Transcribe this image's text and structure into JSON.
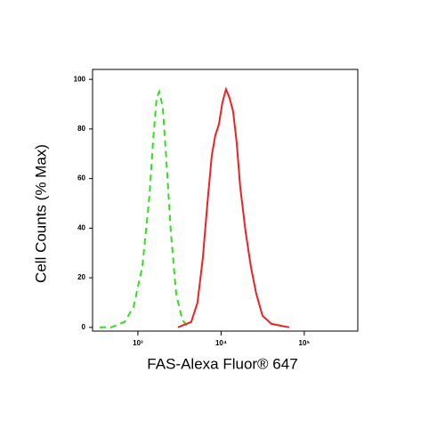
{
  "chart_data": {
    "type": "line",
    "x_label": "FAS-Alexa Fluor® 647",
    "y_label": "Cell Counts (% Max)",
    "xscale": "log",
    "xlim": [
      285,
      440000
    ],
    "ylim": [
      -1.5,
      104
    ],
    "xticks": [
      {
        "value": 1000,
        "label": "10³"
      },
      {
        "value": 10000,
        "label": "10⁴"
      },
      {
        "value": 100000,
        "label": "10⁵"
      }
    ],
    "yticks": [
      0,
      20,
      40,
      60,
      80,
      100
    ],
    "series": [
      {
        "color": "#33dd22",
        "dash": true,
        "x": [
          347,
          478,
          692,
          885,
          1130,
          1377,
          1520,
          1678,
          1806,
          1993,
          2199,
          2488,
          2884,
          3425,
          4070
        ],
        "values": [
          0,
          0,
          2.2,
          8.2,
          24.4,
          53,
          74.6,
          92.5,
          95,
          88.9,
          67.4,
          38.7,
          13.6,
          2.9,
          0
        ]
      },
      {
        "color": "#ee2222",
        "dash": false,
        "x": [
          3027,
          4385,
          5207,
          6034,
          6826,
          7726,
          8518,
          9400,
          10370,
          11450,
          12640,
          13940,
          15380,
          16980,
          19680,
          22800,
          26430,
          31410,
          40180,
          51410,
          65770
        ],
        "values": [
          0,
          2.2,
          10,
          28,
          49.5,
          69.2,
          77.4,
          81.7,
          90.7,
          96,
          92.5,
          87.1,
          74.6,
          56.6,
          38.7,
          24.4,
          13.6,
          4.7,
          1.4,
          0.7,
          0
        ]
      }
    ]
  }
}
